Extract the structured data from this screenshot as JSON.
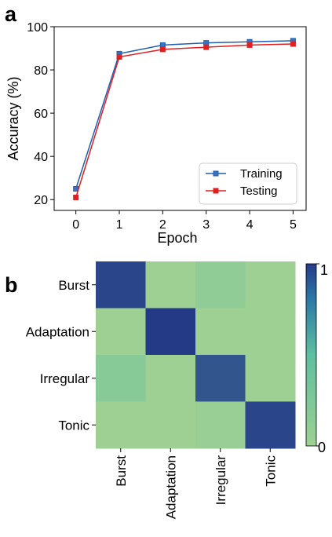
{
  "chart_data": [
    {
      "panel": "a",
      "type": "line",
      "xlabel": "Epoch",
      "ylabel": "Accuracy (%)",
      "x": [
        0,
        1,
        2,
        3,
        4,
        5
      ],
      "xlim": [
        -0.5,
        5.3
      ],
      "ylim": [
        15,
        100
      ],
      "xticks": [
        "0",
        "1",
        "2",
        "3",
        "4",
        "5"
      ],
      "yticks": [
        "20",
        "40",
        "60",
        "80",
        "100"
      ],
      "ytick_values": [
        20,
        40,
        60,
        80,
        100
      ],
      "grid": false,
      "legend_position": "bottom-right",
      "series": [
        {
          "name": "Training",
          "color": "#1f5fb0",
          "marker_fill": "#3a72c0",
          "values": [
            25,
            87.5,
            91.5,
            92.5,
            93,
            93.5
          ]
        },
        {
          "name": "Testing",
          "color": "#e02020",
          "marker_fill": "#e02020",
          "values": [
            21,
            86,
            89.5,
            90.5,
            91.5,
            92
          ]
        }
      ]
    },
    {
      "panel": "b",
      "type": "heatmap",
      "rows": [
        "Burst",
        "Adaptation",
        "Irregular",
        "Tonic"
      ],
      "cols": [
        "Burst",
        "Adaptation",
        "Irregular",
        "Tonic"
      ],
      "values": [
        [
          0.96,
          0.0,
          0.12,
          0.0
        ],
        [
          0.0,
          1.0,
          0.0,
          0.0
        ],
        [
          0.18,
          0.0,
          0.9,
          0.0
        ],
        [
          0.0,
          0.0,
          0.04,
          0.96
        ]
      ],
      "colorbar": {
        "min_label": "0",
        "max_label": "1",
        "min": 0,
        "max": 1
      },
      "colors": {
        "low": "#9ed093",
        "mid": "#5fbf9f",
        "high": "#253a87"
      }
    }
  ],
  "panels": {
    "a_label": "a",
    "b_label": "b"
  }
}
